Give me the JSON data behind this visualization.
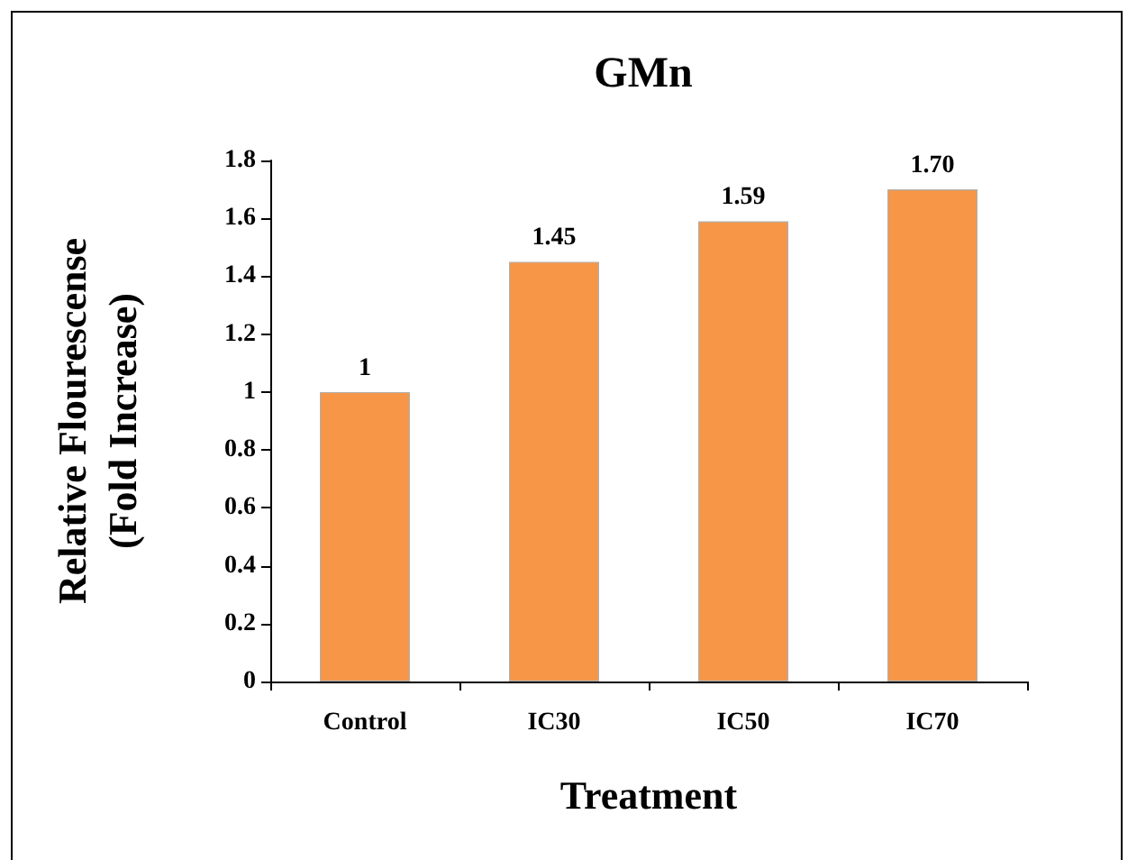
{
  "chart_data": {
    "type": "bar",
    "title": "GMn",
    "xlabel": "Treatment",
    "ylabel": "Relative Flourescense\n(Fold Increase)",
    "categories": [
      "Control",
      "IC30",
      "IC50",
      "IC70"
    ],
    "values": [
      1,
      1.45,
      1.59,
      1.7
    ],
    "value_labels": [
      "1",
      "1.45",
      "1.59",
      "1.70"
    ],
    "color": "#f79646",
    "ylim": [
      0,
      1.8
    ],
    "yticks": [
      0,
      0.2,
      0.4,
      0.6,
      0.8,
      1,
      1.2,
      1.4,
      1.6,
      1.8
    ]
  }
}
